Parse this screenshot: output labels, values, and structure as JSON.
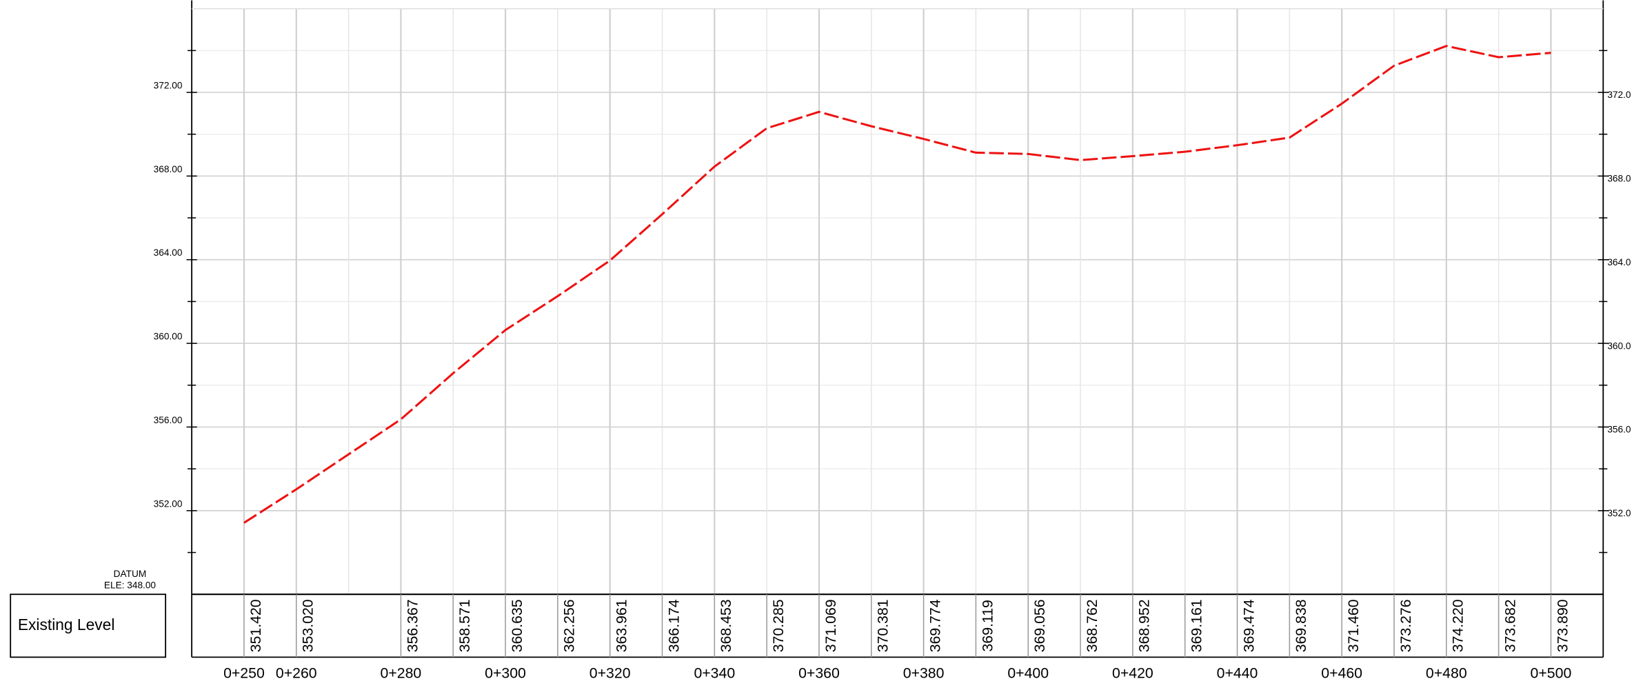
{
  "chart_data": {
    "type": "line",
    "x": [
      250,
      260,
      280,
      290,
      300,
      310,
      320,
      330,
      340,
      350,
      360,
      370,
      380,
      390,
      400,
      410,
      420,
      430,
      440,
      450,
      460,
      470,
      480,
      490,
      500
    ],
    "series": [
      {
        "name": "Existing Level",
        "color": "#ee1111",
        "values": [
          351.42,
          353.02,
          356.367,
          358.571,
          360.635,
          362.256,
          363.961,
          366.174,
          368.453,
          370.285,
          371.069,
          370.381,
          369.774,
          369.119,
          369.056,
          368.762,
          368.952,
          369.161,
          369.474,
          369.838,
          371.46,
          373.276,
          374.22,
          373.682,
          373.89
        ],
        "value_labels": [
          "351.420",
          "353.020",
          "356.367",
          "358.571",
          "360.635",
          "362.256",
          "363.961",
          "366.174",
          "368.453",
          "370.285",
          "371.069",
          "370.381",
          "369.774",
          "369.119",
          "369.056",
          "368.762",
          "368.952",
          "369.161",
          "369.474",
          "369.838",
          "371.460",
          "373.276",
          "374.220",
          "373.682",
          "373.890"
        ]
      }
    ],
    "xlim": [
      240,
      510
    ],
    "xticks": [
      {
        "value": 250,
        "label": "0+250"
      },
      {
        "value": 260,
        "label": "0+260"
      },
      {
        "value": 280,
        "label": "0+280"
      },
      {
        "value": 300,
        "label": "0+300"
      },
      {
        "value": 320,
        "label": "0+320"
      },
      {
        "value": 340,
        "label": "0+340"
      },
      {
        "value": 360,
        "label": "0+360"
      },
      {
        "value": 380,
        "label": "0+380"
      },
      {
        "value": 400,
        "label": "0+400"
      },
      {
        "value": 420,
        "label": "0+420"
      },
      {
        "value": 440,
        "label": "0+440"
      },
      {
        "value": 460,
        "label": "0+460"
      },
      {
        "value": 480,
        "label": "0+480"
      },
      {
        "value": 500,
        "label": "0+500"
      }
    ],
    "ylim": [
      348,
      376
    ],
    "yticks": [
      {
        "value": 352,
        "label": "352.00"
      },
      {
        "value": 356,
        "label": "356.00"
      },
      {
        "value": 360,
        "label": "360.00"
      },
      {
        "value": 364,
        "label": "364.00"
      },
      {
        "value": 368,
        "label": "368.00"
      },
      {
        "value": 372,
        "label": "372.00"
      }
    ],
    "y2lim": [
      348,
      376
    ],
    "y2ticks": [
      {
        "value": 352,
        "label": "352.0"
      },
      {
        "value": 356,
        "label": "356.0"
      },
      {
        "value": 360,
        "label": "360.0"
      },
      {
        "value": 364,
        "label": "364.0"
      },
      {
        "value": 368,
        "label": "368.0"
      },
      {
        "value": 372,
        "label": "372.0"
      }
    ],
    "annotations": [
      "DATUM",
      "ELE: 348.00"
    ],
    "grid": true
  }
}
